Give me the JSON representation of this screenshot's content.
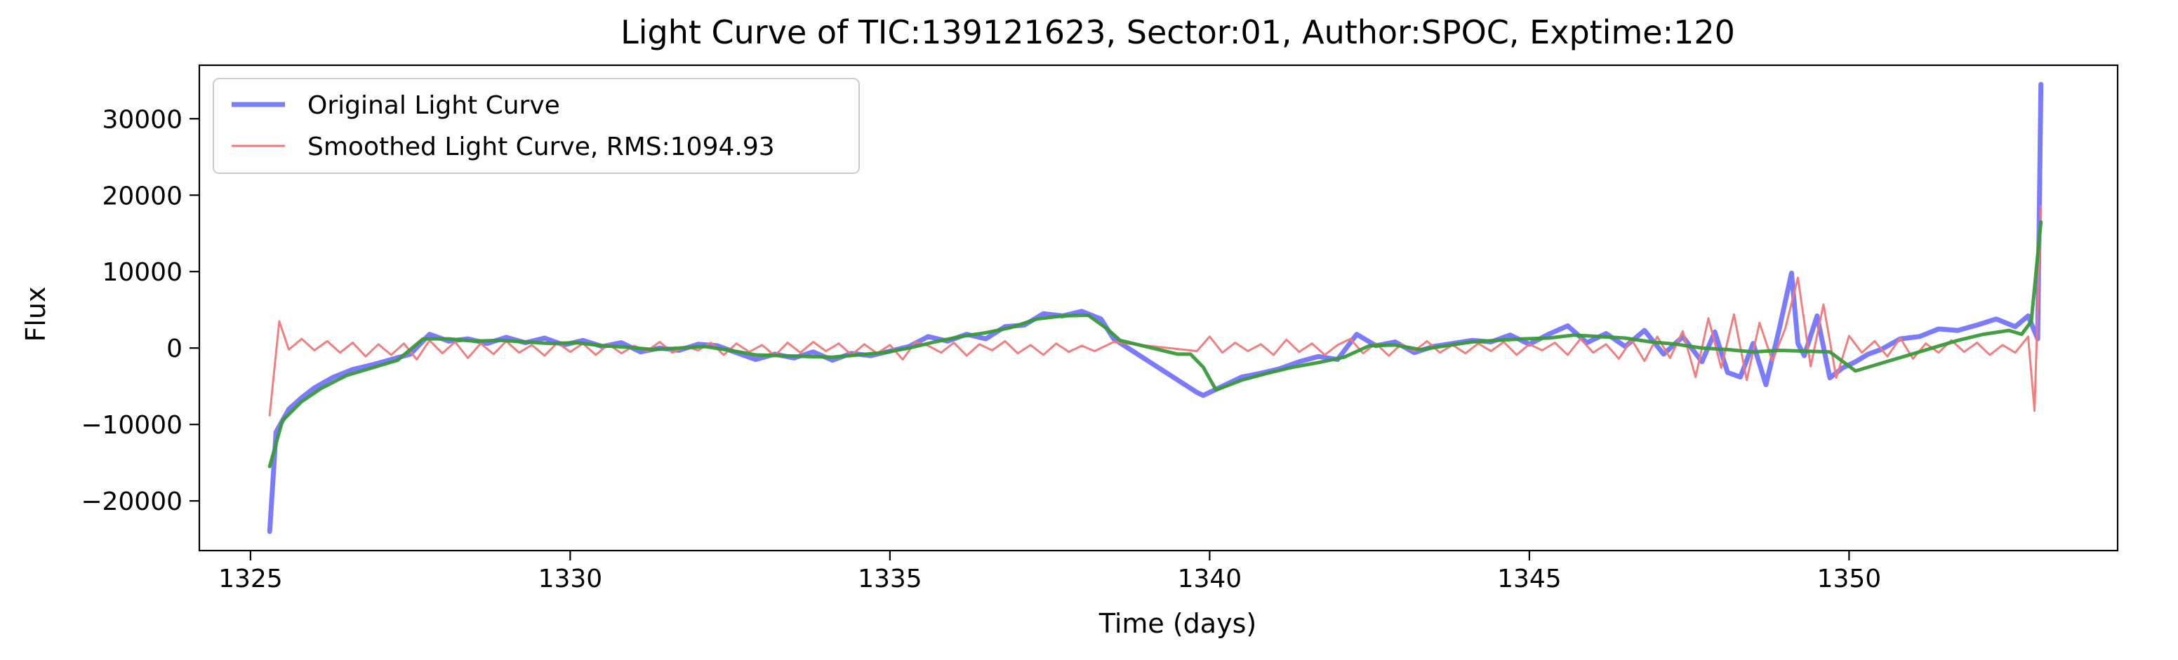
{
  "chart_data": {
    "type": "line",
    "title": "Light Curve of TIC:139121623, Sector:01, Author:SPOC, Exptime:120",
    "xlabel": "Time (days)",
    "ylabel": "Flux",
    "xlim": [
      1324.2,
      1354.2
    ],
    "ylim": [
      -26500,
      37000
    ],
    "xticks": [
      1325,
      1330,
      1335,
      1340,
      1345,
      1350
    ],
    "yticks": [
      -20000,
      -10000,
      0,
      10000,
      20000,
      30000
    ],
    "grid": false,
    "legend_position": "upper-left",
    "series": [
      {
        "name": "Original Light Curve",
        "color": "#7b7bff",
        "x": [
          1325.3,
          1325.4,
          1325.6,
          1325.8,
          1326.0,
          1326.3,
          1326.6,
          1326.9,
          1327.2,
          1327.5,
          1327.8,
          1328.1,
          1328.4,
          1328.7,
          1329.0,
          1329.3,
          1329.6,
          1329.9,
          1330.2,
          1330.5,
          1330.8,
          1331.1,
          1331.4,
          1331.7,
          1332.0,
          1332.3,
          1332.6,
          1332.9,
          1333.2,
          1333.5,
          1333.8,
          1334.1,
          1334.4,
          1334.7,
          1335.0,
          1335.3,
          1335.6,
          1335.9,
          1336.2,
          1336.5,
          1336.8,
          1337.1,
          1337.4,
          1337.7,
          1338.0,
          1338.3,
          1338.5,
          1339.8,
          1339.9,
          1340.2,
          1340.5,
          1340.8,
          1341.1,
          1341.4,
          1341.7,
          1342.0,
          1342.3,
          1342.6,
          1342.9,
          1343.2,
          1343.5,
          1343.8,
          1344.1,
          1344.4,
          1344.7,
          1345.0,
          1345.3,
          1345.6,
          1345.9,
          1346.2,
          1346.5,
          1346.8,
          1347.1,
          1347.4,
          1347.7,
          1347.9,
          1348.1,
          1348.3,
          1348.5,
          1348.7,
          1348.9,
          1349.1,
          1349.2,
          1349.3,
          1349.5,
          1349.7,
          1349.9,
          1350.1,
          1350.3,
          1350.5,
          1350.8,
          1351.1,
          1351.4,
          1351.7,
          1352.0,
          1352.3,
          1352.6,
          1352.8,
          1352.95,
          1353.0
        ],
        "y": [
          -24000,
          -11000,
          -8000,
          -6500,
          -5200,
          -3800,
          -2800,
          -2200,
          -1500,
          -800,
          1800,
          900,
          1200,
          600,
          1400,
          700,
          1300,
          400,
          1000,
          200,
          700,
          -500,
          0,
          -300,
          500,
          300,
          -600,
          -1500,
          -800,
          -1300,
          -500,
          -1600,
          -700,
          -1000,
          -400,
          200,
          1500,
          900,
          1800,
          1200,
          2800,
          3000,
          4500,
          4200,
          4800,
          3800,
          1200,
          -5800,
          -6200,
          -5000,
          -3800,
          -3300,
          -2700,
          -1800,
          -1100,
          -1500,
          1800,
          300,
          800,
          -600,
          200,
          600,
          1000,
          800,
          1700,
          500,
          1800,
          2900,
          700,
          1900,
          200,
          2300,
          -800,
          1500,
          -1800,
          2100,
          -3200,
          -3800,
          600,
          -4800,
          2200,
          9800,
          600,
          -1000,
          4200,
          -3900,
          -2600,
          -1800,
          -800,
          -200,
          1200,
          1500,
          2500,
          2300,
          3000,
          3800,
          2800,
          4200,
          1200,
          34500
        ]
      },
      {
        "name": "Smoothed Light Curve, RMS:1094.93",
        "color": "#f07878",
        "x": [
          1325.3,
          1325.45,
          1325.6,
          1325.8,
          1326.0,
          1326.2,
          1326.4,
          1326.6,
          1326.8,
          1327.0,
          1327.2,
          1327.4,
          1327.6,
          1327.8,
          1328.0,
          1328.2,
          1328.4,
          1328.6,
          1328.8,
          1329.0,
          1329.2,
          1329.4,
          1329.6,
          1329.8,
          1330.0,
          1330.2,
          1330.4,
          1330.6,
          1330.8,
          1331.0,
          1331.2,
          1331.4,
          1331.6,
          1331.8,
          1332.0,
          1332.2,
          1332.4,
          1332.6,
          1332.8,
          1333.0,
          1333.2,
          1333.4,
          1333.6,
          1333.8,
          1334.0,
          1334.2,
          1334.4,
          1334.6,
          1334.8,
          1335.0,
          1335.2,
          1335.4,
          1335.6,
          1335.8,
          1336.0,
          1336.2,
          1336.4,
          1336.6,
          1336.8,
          1337.0,
          1337.2,
          1337.4,
          1337.6,
          1337.8,
          1338.0,
          1338.2,
          1338.5,
          1339.8,
          1340.0,
          1340.2,
          1340.4,
          1340.6,
          1340.8,
          1341.0,
          1341.2,
          1341.4,
          1341.6,
          1341.8,
          1342.0,
          1342.2,
          1342.4,
          1342.6,
          1342.8,
          1343.0,
          1343.2,
          1343.4,
          1343.6,
          1343.8,
          1344.0,
          1344.2,
          1344.4,
          1344.6,
          1344.8,
          1345.0,
          1345.2,
          1345.4,
          1345.6,
          1345.8,
          1346.0,
          1346.2,
          1346.4,
          1346.6,
          1346.8,
          1347.0,
          1347.2,
          1347.4,
          1347.6,
          1347.8,
          1348.0,
          1348.2,
          1348.4,
          1348.6,
          1348.8,
          1349.0,
          1349.2,
          1349.4,
          1349.6,
          1349.8,
          1350.0,
          1350.2,
          1350.4,
          1350.6,
          1350.8,
          1351.0,
          1351.2,
          1351.4,
          1351.6,
          1351.8,
          1352.0,
          1352.2,
          1352.4,
          1352.6,
          1352.8,
          1352.9,
          1353.0
        ],
        "y": [
          -8800,
          3500,
          -200,
          1200,
          -300,
          900,
          -600,
          700,
          -1100,
          500,
          -900,
          600,
          -1500,
          1000,
          -700,
          800,
          -1300,
          600,
          -800,
          900,
          -600,
          400,
          -1000,
          700,
          -500,
          600,
          -900,
          500,
          -700,
          300,
          -400,
          800,
          -600,
          200,
          -300,
          700,
          -900,
          600,
          -500,
          400,
          -1000,
          700,
          -600,
          800,
          -400,
          600,
          -900,
          500,
          -700,
          400,
          -1500,
          800,
          300,
          -600,
          700,
          -1000,
          500,
          -300,
          900,
          -700,
          400,
          -900,
          600,
          -500,
          300,
          -400,
          800,
          -400,
          1500,
          -600,
          700,
          -400,
          500,
          -900,
          1100,
          -500,
          600,
          -900,
          400,
          1200,
          -700,
          600,
          -1000,
          500,
          -400,
          900,
          -600,
          400,
          -700,
          600,
          -400,
          800,
          -900,
          500,
          -300,
          700,
          -900,
          1200,
          -600,
          500,
          -1400,
          1100,
          -1700,
          1500,
          -1300,
          2200,
          -3800,
          3900,
          -2600,
          4400,
          -4200,
          3300,
          -1700,
          2500,
          9200,
          -2400,
          5700,
          -3900,
          1600,
          -600,
          900,
          -1100,
          1300,
          -1400,
          600,
          -600,
          1000,
          -500,
          700,
          -900,
          400,
          -600,
          1500,
          -8200,
          18500
        ]
      },
      {
        "name": "",
        "color": "#3a9a3a",
        "x": [
          1325.3,
          1325.5,
          1325.8,
          1326.1,
          1326.5,
          1326.9,
          1327.3,
          1327.7,
          1328.1,
          1328.5,
          1328.9,
          1329.3,
          1329.7,
          1330.1,
          1330.5,
          1330.9,
          1331.3,
          1331.7,
          1332.1,
          1332.5,
          1332.9,
          1333.3,
          1333.7,
          1334.1,
          1334.5,
          1334.9,
          1335.3,
          1335.7,
          1336.1,
          1336.5,
          1336.9,
          1337.3,
          1337.7,
          1338.1,
          1338.4,
          1338.6,
          1339.5,
          1339.7,
          1339.9,
          1340.1,
          1340.5,
          1340.9,
          1341.3,
          1341.7,
          1342.1,
          1342.5,
          1342.9,
          1343.3,
          1343.7,
          1344.1,
          1344.5,
          1344.9,
          1345.3,
          1345.7,
          1346.1,
          1346.5,
          1346.9,
          1347.3,
          1347.7,
          1348.1,
          1348.5,
          1348.9,
          1349.3,
          1349.7,
          1350.1,
          1350.5,
          1350.9,
          1351.3,
          1351.7,
          1352.1,
          1352.5,
          1352.7,
          1352.85,
          1353.0
        ],
        "y": [
          -15500,
          -9500,
          -7000,
          -5300,
          -3600,
          -2600,
          -1600,
          1200,
          1200,
          900,
          1000,
          800,
          600,
          700,
          300,
          100,
          -200,
          0,
          200,
          -300,
          -900,
          -1000,
          -1100,
          -1200,
          -900,
          -600,
          0,
          800,
          1500,
          2000,
          2700,
          3800,
          4200,
          4300,
          2500,
          1000,
          -800,
          -800,
          -2500,
          -5500,
          -4200,
          -3300,
          -2500,
          -1900,
          -1200,
          300,
          400,
          -200,
          300,
          800,
          1000,
          1200,
          1300,
          1700,
          1500,
          1300,
          800,
          500,
          0,
          -200,
          -500,
          -300,
          -400,
          -500,
          -3000,
          -2000,
          -1000,
          0,
          1000,
          1800,
          2300,
          1800,
          3500,
          16500
        ]
      }
    ]
  }
}
